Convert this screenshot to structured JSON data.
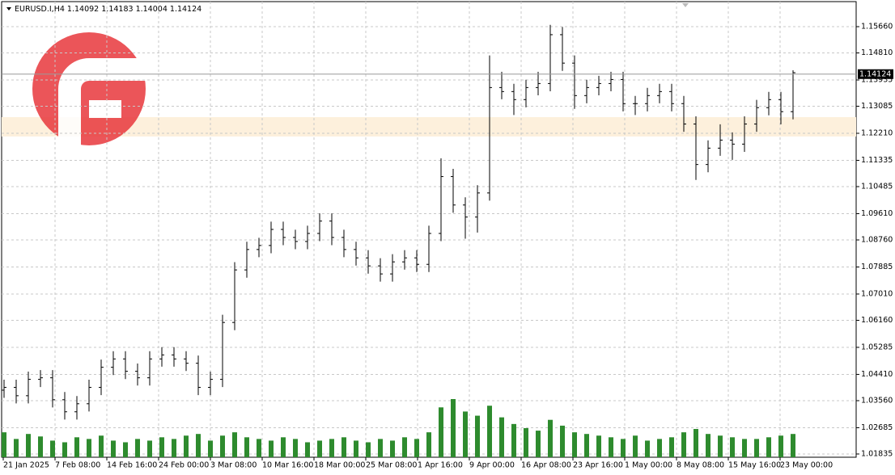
{
  "chart_data": {
    "type": "ohlc",
    "symbol": "EURUSD.I,H4",
    "last": {
      "open": 1.14092,
      "high": 1.14183,
      "low": 1.14004,
      "close": 1.14124
    },
    "ylim": [
      1.0173,
      1.1647
    ],
    "yticks": [
      {
        "value": 1.1566,
        "label": "1.15660"
      },
      {
        "value": 1.1481,
        "label": "1.14810"
      },
      1.13935,
      1.13085,
      {
        "value": 1.1221,
        "label": "1.12210"
      },
      1.11335,
      1.10485,
      {
        "value": 1.0961,
        "label": "1.09610"
      },
      {
        "value": 1.0876,
        "label": "1.08760"
      },
      1.07885,
      {
        "value": 1.0701,
        "label": "1.07010"
      },
      {
        "value": 1.0616,
        "label": "1.06160"
      },
      1.05285,
      {
        "value": 1.0441,
        "label": "1.04410"
      },
      {
        "value": 1.0356,
        "label": "1.03560"
      },
      1.02685,
      1.01835
    ],
    "xtick_labels": [
      "21 Jan 2025",
      "7 Feb 08:00",
      "14 Feb 16:00",
      "24 Feb 00:00",
      "3 Mar 08:00",
      "10 Mar 16:00",
      "18 Mar 00:00",
      "25 Mar 08:00",
      "1 Apr 16:00",
      "9 Apr 00:00",
      "16 Apr 08:00",
      "23 Apr 16:00",
      "1 May 00:00",
      "8 May 08:00",
      "15 May 16:00",
      "23 May 00:00"
    ],
    "grid": true,
    "color": "#000000",
    "volume_color": "#2e8b2e",
    "open": [
      1.039,
      1.0399,
      1.0372,
      1.0425,
      1.043,
      1.0359,
      1.032,
      1.0346,
      1.0399,
      1.0464,
      1.0491,
      1.0451,
      1.043,
      1.0491,
      1.0504,
      1.0491,
      1.0477,
      1.0399,
      1.0425,
      1.0609,
      1.0779,
      1.0845,
      1.0858,
      1.091,
      1.0884,
      1.0871,
      1.0897,
      1.0937,
      1.0884,
      1.0845,
      1.0818,
      1.0792,
      1.0766,
      1.0805,
      1.0818,
      1.0797,
      1.0897,
      1.1081,
      1.0989,
      1.095,
      1.1028,
      1.1369,
      1.1356,
      1.133,
      1.1369,
      1.1382,
      1.154,
      1.1448,
      1.1343,
      1.1369,
      1.1382,
      1.1395,
      1.1317,
      1.1317,
      1.1343,
      1.1356,
      1.1317,
      1.1251,
      1.112,
      1.1173,
      1.1199,
      1.1186,
      1.1251,
      1.1304,
      1.133,
      1.1291
    ],
    "high": [
      1.0424,
      1.0424,
      1.045,
      1.0455,
      1.0455,
      1.0384,
      1.0371,
      1.0424,
      1.0489,
      1.0516,
      1.0516,
      1.0476,
      1.0516,
      1.0529,
      1.0529,
      1.0516,
      1.0502,
      1.045,
      1.0634,
      1.0804,
      1.087,
      1.0883,
      1.0935,
      1.0935,
      1.0909,
      1.0922,
      1.0962,
      1.0962,
      1.0909,
      1.087,
      1.0843,
      1.0817,
      1.083,
      1.0843,
      1.0843,
      1.0922,
      1.114,
      1.1106,
      1.1014,
      1.1053,
      1.1473,
      1.142,
      1.1381,
      1.1394,
      1.142,
      1.1572,
      1.1565,
      1.1473,
      1.1394,
      1.1407,
      1.142,
      1.142,
      1.1342,
      1.1368,
      1.1381,
      1.1381,
      1.1342,
      1.1276,
      1.1198,
      1.125,
      1.1224,
      1.1276,
      1.1329,
      1.1355,
      1.1355,
      1.1425
    ],
    "low": [
      1.0365,
      1.0347,
      1.0347,
      1.04,
      1.0334,
      1.0295,
      1.0295,
      1.0321,
      1.0374,
      1.0439,
      1.0426,
      1.0405,
      1.0405,
      1.0466,
      1.0466,
      1.0452,
      1.0374,
      1.0374,
      1.04,
      1.0584,
      1.0754,
      1.082,
      1.0833,
      1.0859,
      1.0846,
      1.0846,
      1.0872,
      1.0859,
      1.082,
      1.0793,
      1.0767,
      1.0741,
      1.0741,
      1.078,
      1.0772,
      1.0772,
      1.0872,
      1.0964,
      1.088,
      1.09,
      1.1003,
      1.1331,
      1.128,
      1.1305,
      1.1344,
      1.1357,
      1.1423,
      1.13,
      1.1318,
      1.1344,
      1.1357,
      1.1292,
      1.128,
      1.1292,
      1.1318,
      1.1292,
      1.1226,
      1.107,
      1.1095,
      1.1148,
      1.1135,
      1.1161,
      1.1226,
      1.1279,
      1.125,
      1.1266
    ],
    "close": [
      1.0399,
      1.0372,
      1.0425,
      1.043,
      1.0359,
      1.032,
      1.0346,
      1.0399,
      1.0464,
      1.0491,
      1.0451,
      1.043,
      1.0491,
      1.0504,
      1.0491,
      1.0477,
      1.0399,
      1.0425,
      1.0609,
      1.0779,
      1.0845,
      1.0858,
      1.091,
      1.0884,
      1.0871,
      1.0897,
      1.0937,
      1.0884,
      1.0845,
      1.0818,
      1.0792,
      1.0766,
      1.0805,
      1.0818,
      1.0797,
      1.0897,
      1.1081,
      1.0989,
      1.095,
      1.1028,
      1.1369,
      1.1356,
      1.133,
      1.1369,
      1.1382,
      1.154,
      1.1448,
      1.1343,
      1.1369,
      1.1382,
      1.1395,
      1.1317,
      1.1317,
      1.1343,
      1.1356,
      1.1317,
      1.1251,
      1.112,
      1.1173,
      1.1199,
      1.1186,
      1.1251,
      1.1304,
      1.133,
      1.1291,
      1.1417
    ],
    "volume": [
      30,
      22,
      28,
      25,
      20,
      18,
      24,
      22,
      26,
      20,
      18,
      22,
      20,
      24,
      22,
      26,
      28,
      20,
      26,
      30,
      24,
      22,
      20,
      24,
      22,
      18,
      20,
      22,
      24,
      20,
      18,
      22,
      20,
      24,
      22,
      30,
      60,
      70,
      55,
      50,
      62,
      48,
      40,
      35,
      32,
      45,
      38,
      30,
      28,
      26,
      24,
      22,
      26,
      20,
      22,
      24,
      30,
      34,
      28,
      26,
      24,
      22,
      22,
      24,
      26,
      28
    ]
  }
}
